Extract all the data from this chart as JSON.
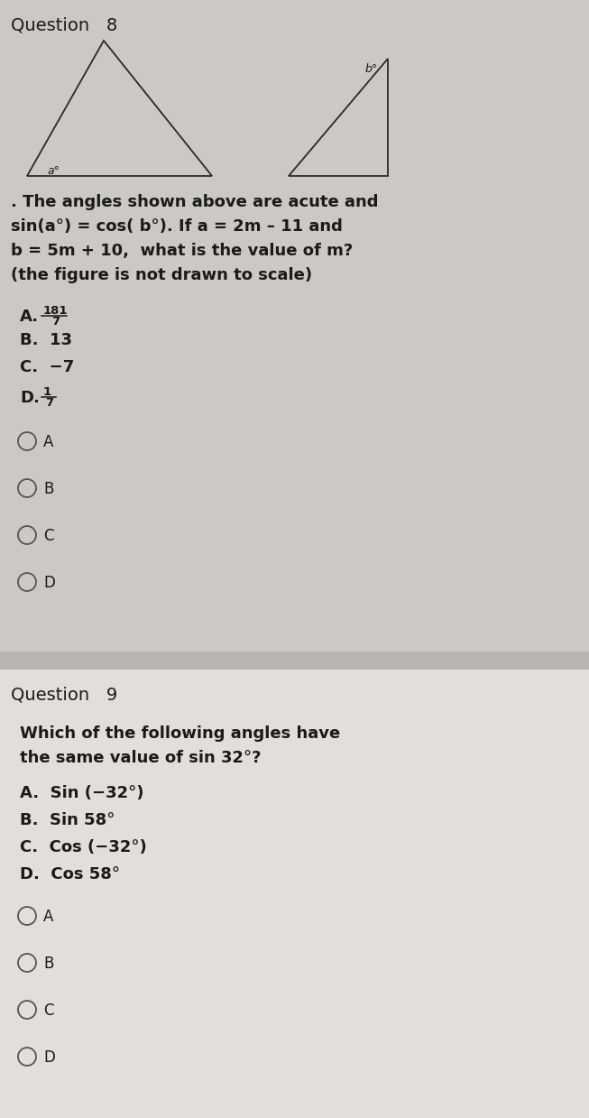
{
  "bg_q8": "#ccc8c4",
  "bg_q9": "#e2deda",
  "separator_color": "#aaa8a5",
  "text_color": "#1a1a1a",
  "circle_color": "#555555",
  "q8_title": "Question   8",
  "q8_body_lines": [
    ". The angles shown above are acute and",
    "sin(a°) = cos( b°). If a = 2m – 11 and",
    "b = 5m + 10,  what is the value of m?",
    "(the figure is not drawn to scale)"
  ],
  "q8_optA_label": "A.",
  "q8_optA_num": "181",
  "q8_optA_den": "7",
  "q8_optB": "B.  13",
  "q8_optC": "C.  −7",
  "q8_optD_label": "D.",
  "q8_optD_num": "1",
  "q8_optD_den": "7",
  "q8_choices": [
    "A",
    "B",
    "C",
    "D"
  ],
  "q9_title": "Question   9",
  "q9_body_lines": [
    "Which of the following angles have",
    "the same value of sin 32°?"
  ],
  "q9_opts": [
    "A.  Sin (−32°)",
    "B.  Sin 58°",
    "C.  Cos (−32°)",
    "D.  Cos 58°"
  ],
  "q9_choices": [
    "A",
    "B",
    "C",
    "D"
  ]
}
